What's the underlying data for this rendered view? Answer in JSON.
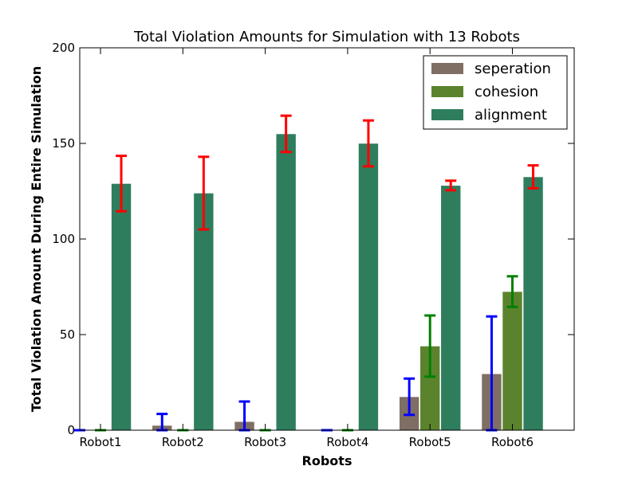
{
  "chart_data": {
    "type": "bar",
    "title": "Total Violation Amounts for Simulation with 13 Robots",
    "xlabel": "Robots",
    "ylabel": "Total Violation Amount During Entire Simulation",
    "ylim": [
      0,
      200
    ],
    "yticks": [
      "0",
      "50",
      "100",
      "150",
      "200"
    ],
    "categories": [
      "Robot1",
      "Robot2",
      "Robot3",
      "Robot4",
      "Robot5",
      "Robot6"
    ],
    "legend_position": "top-right",
    "grid": false,
    "series": [
      {
        "name": "seperation",
        "color": "#7f6e63",
        "error_color": "#0000ff",
        "values": [
          0,
          2.5,
          4.5,
          0,
          17.5,
          29.5
        ],
        "errors": [
          0,
          6,
          10.5,
          0,
          9.5,
          30
        ]
      },
      {
        "name": "cohesion",
        "color": "#5b832d",
        "error_color": "#008000",
        "values": [
          0,
          0,
          0,
          0,
          44,
          72.5
        ],
        "errors": [
          0,
          0,
          0,
          0,
          16,
          8
        ]
      },
      {
        "name": "alignment",
        "color": "#2e7e5e",
        "error_color": "#ff0000",
        "values": [
          129,
          124,
          155,
          150,
          128,
          132.5
        ],
        "errors": [
          14.5,
          19,
          9.5,
          12,
          2.5,
          6
        ]
      }
    ]
  }
}
